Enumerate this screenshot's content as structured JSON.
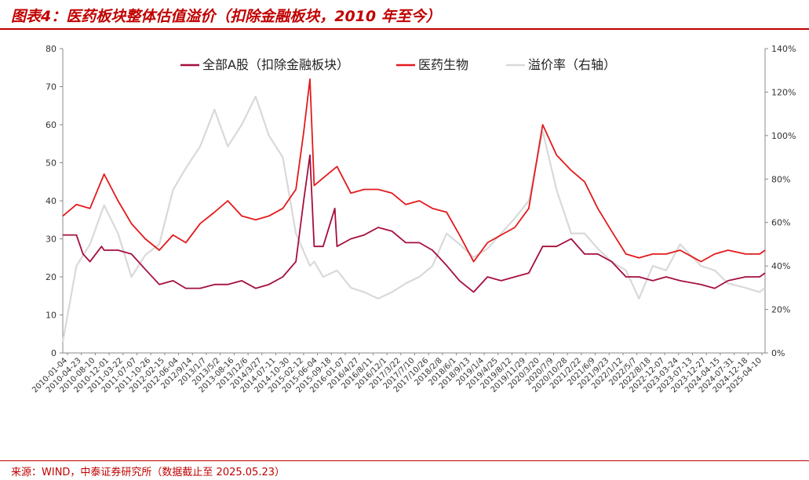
{
  "header": {
    "title": "图表4：医药板块整体估值溢价（扣除金融板块，2010 年至今）"
  },
  "footer": {
    "source": "来源：WIND，中泰证券研究所（数据截止至 2025.05.23）"
  },
  "colors": {
    "brand": "#c00000",
    "series_a": "#a50f3c",
    "series_b": "#e31a1c",
    "series_c": "#d9d9d9"
  },
  "chart_data": {
    "type": "line",
    "title": "",
    "legend_position": "top",
    "grid": false,
    "y_left": {
      "min": 0,
      "max": 80,
      "ticks": [
        "0",
        "10",
        "20",
        "30",
        "40",
        "50",
        "60",
        "70",
        "80"
      ]
    },
    "y_right": {
      "min": 0,
      "max": 140,
      "unit": "%",
      "ticks": [
        "0%",
        "20%",
        "40%",
        "60%",
        "80%",
        "100%",
        "120%",
        "140%"
      ]
    },
    "x_range": [
      "2010-01-04",
      "2025-05-23"
    ],
    "x_tick_labels": [
      "2010-01-04",
      "2010-04-23",
      "2010-08-10",
      "2010-12-01",
      "2011-03-22",
      "2011-07-07",
      "2011-10-26",
      "2012-02-15",
      "2012-06-04",
      "2012/9/14",
      "2013/1/7",
      "2013/5/2",
      "2013-08-16",
      "2013/12/6",
      "2014/3/27",
      "2014-07-11",
      "2014-10-30",
      "2015-02-12",
      "2015-06-04",
      "2015-09-18",
      "2016-01-07",
      "2016/4/27",
      "2016/8/11",
      "2016/12/1",
      "2017/3/22",
      "2017/7/10",
      "2017/10/26",
      "2018/2/8",
      "2018/6/1",
      "2018/9/13",
      "2019/1/4",
      "2019/4/25",
      "2019/8/12",
      "2019/11/29",
      "2020/3/20",
      "2020/7/9",
      "2020/10/28",
      "2021/2/22",
      "2021/6/9",
      "2021/9/23",
      "2022/1/12",
      "2022/5/7",
      "2022/8/18",
      "2022-12-07",
      "2023-03-24",
      "2023-07-13",
      "2023-12-27",
      "2024-04-15",
      "2024-07-31",
      "2024-12-18",
      "2025-04-10"
    ],
    "series": [
      {
        "name": "全部A股（扣除金融板块）",
        "axis": "left",
        "color": "#a50f3c",
        "points": [
          [
            "2010-01-04",
            31
          ],
          [
            "2010-04-23",
            31
          ],
          [
            "2010-06-15",
            26
          ],
          [
            "2010-08-10",
            24
          ],
          [
            "2010-11-10",
            28
          ],
          [
            "2010-12-01",
            27
          ],
          [
            "2011-03-22",
            27
          ],
          [
            "2011-07-07",
            26
          ],
          [
            "2011-10-26",
            22
          ],
          [
            "2012-02-15",
            18
          ],
          [
            "2012-06-04",
            19
          ],
          [
            "2012/9/14",
            17
          ],
          [
            "2013/1/7",
            17
          ],
          [
            "2013/5/2",
            18
          ],
          [
            "2013-08-16",
            18
          ],
          [
            "2013/12/6",
            19
          ],
          [
            "2014/3/27",
            17
          ],
          [
            "2014-07-11",
            18
          ],
          [
            "2014-10-30",
            20
          ],
          [
            "2015-02-12",
            24
          ],
          [
            "2015-04-15",
            40
          ],
          [
            "2015-06-04",
            52
          ],
          [
            "2015-07-08",
            28
          ],
          [
            "2015-09-18",
            28
          ],
          [
            "2015-12-20",
            38
          ],
          [
            "2016-01-07",
            28
          ],
          [
            "2016/4/27",
            30
          ],
          [
            "2016/8/11",
            31
          ],
          [
            "2016/12/1",
            33
          ],
          [
            "2017/3/22",
            32
          ],
          [
            "2017/7/10",
            29
          ],
          [
            "2017/10/26",
            29
          ],
          [
            "2018/2/8",
            27
          ],
          [
            "2018/6/1",
            23
          ],
          [
            "2018/9/13",
            19
          ],
          [
            "2019/1/4",
            16
          ],
          [
            "2019/4/25",
            20
          ],
          [
            "2019/8/12",
            19
          ],
          [
            "2019/11/29",
            20
          ],
          [
            "2020/3/20",
            21
          ],
          [
            "2020/7/9",
            28
          ],
          [
            "2020/10/28",
            28
          ],
          [
            "2021/2/22",
            30
          ],
          [
            "2021/6/9",
            26
          ],
          [
            "2021/9/23",
            26
          ],
          [
            "2022/1/12",
            24
          ],
          [
            "2022/5/7",
            20
          ],
          [
            "2022/8/18",
            20
          ],
          [
            "2022-12-07",
            19
          ],
          [
            "2023-03-24",
            20
          ],
          [
            "2023-07-13",
            19
          ],
          [
            "2023-12-27",
            18
          ],
          [
            "2024-04-15",
            17
          ],
          [
            "2024-07-31",
            19
          ],
          [
            "2024-12-18",
            20
          ],
          [
            "2025-04-10",
            20
          ],
          [
            "2025-05-23",
            21
          ]
        ]
      },
      {
        "name": "医药生物",
        "axis": "left",
        "color": "#e31a1c",
        "points": [
          [
            "2010-01-04",
            36
          ],
          [
            "2010-04-23",
            39
          ],
          [
            "2010-08-10",
            38
          ],
          [
            "2010-12-01",
            47
          ],
          [
            "2011-03-22",
            40
          ],
          [
            "2011-07-07",
            34
          ],
          [
            "2011-10-26",
            30
          ],
          [
            "2012-02-15",
            27
          ],
          [
            "2012-06-04",
            31
          ],
          [
            "2012/9/14",
            29
          ],
          [
            "2013/1/7",
            34
          ],
          [
            "2013/5/2",
            37
          ],
          [
            "2013-08-16",
            40
          ],
          [
            "2013/12/6",
            36
          ],
          [
            "2014/3/27",
            35
          ],
          [
            "2014-07-11",
            36
          ],
          [
            "2014-10-30",
            38
          ],
          [
            "2015-02-12",
            43
          ],
          [
            "2015-04-15",
            58
          ],
          [
            "2015-06-04",
            72
          ],
          [
            "2015-07-08",
            44
          ],
          [
            "2015-09-18",
            46
          ],
          [
            "2016-01-07",
            49
          ],
          [
            "2016/4/27",
            42
          ],
          [
            "2016/8/11",
            43
          ],
          [
            "2016/12/1",
            43
          ],
          [
            "2017/3/22",
            42
          ],
          [
            "2017/7/10",
            39
          ],
          [
            "2017/10/26",
            40
          ],
          [
            "2018/2/8",
            38
          ],
          [
            "2018/6/1",
            37
          ],
          [
            "2018/9/13",
            31
          ],
          [
            "2019/1/4",
            24
          ],
          [
            "2019/4/25",
            29
          ],
          [
            "2019/8/12",
            31
          ],
          [
            "2019/11/29",
            33
          ],
          [
            "2020/3/20",
            38
          ],
          [
            "2020/7/9",
            60
          ],
          [
            "2020/10/28",
            52
          ],
          [
            "2021/2/22",
            48
          ],
          [
            "2021/6/9",
            45
          ],
          [
            "2021/9/23",
            38
          ],
          [
            "2022/1/12",
            32
          ],
          [
            "2022/5/7",
            26
          ],
          [
            "2022/8/18",
            25
          ],
          [
            "2022-12-07",
            26
          ],
          [
            "2023-03-24",
            26
          ],
          [
            "2023-07-13",
            27
          ],
          [
            "2023-12-27",
            24
          ],
          [
            "2024-04-15",
            26
          ],
          [
            "2024-07-31",
            27
          ],
          [
            "2024-12-18",
            26
          ],
          [
            "2025-04-10",
            26
          ],
          [
            "2025-05-23",
            27
          ]
        ]
      },
      {
        "name": "溢价率（右轴）",
        "axis": "right",
        "color": "#d9d9d9",
        "points": [
          [
            "2010-01-04",
            5
          ],
          [
            "2010-04-23",
            40
          ],
          [
            "2010-08-10",
            50
          ],
          [
            "2010-12-01",
            68
          ],
          [
            "2011-03-22",
            55
          ],
          [
            "2011-07-07",
            35
          ],
          [
            "2011-10-26",
            45
          ],
          [
            "2012-02-15",
            50
          ],
          [
            "2012-06-04",
            75
          ],
          [
            "2012/9/14",
            85
          ],
          [
            "2013/1/7",
            95
          ],
          [
            "2013/5/2",
            112
          ],
          [
            "2013-08-16",
            95
          ],
          [
            "2013/12/6",
            105
          ],
          [
            "2014/3/27",
            118
          ],
          [
            "2014-07-11",
            100
          ],
          [
            "2014-10-30",
            90
          ],
          [
            "2015-02-12",
            55
          ],
          [
            "2015-06-04",
            40
          ],
          [
            "2015-07-08",
            42
          ],
          [
            "2015-09-18",
            35
          ],
          [
            "2016-01-07",
            38
          ],
          [
            "2016/4/27",
            30
          ],
          [
            "2016/8/11",
            28
          ],
          [
            "2016/12/1",
            25
          ],
          [
            "2017/3/22",
            28
          ],
          [
            "2017/7/10",
            32
          ],
          [
            "2017/10/26",
            35
          ],
          [
            "2018/2/8",
            40
          ],
          [
            "2018/6/1",
            55
          ],
          [
            "2018/9/13",
            50
          ],
          [
            "2019/1/4",
            44
          ],
          [
            "2019/4/25",
            48
          ],
          [
            "2019/8/12",
            55
          ],
          [
            "2019/11/29",
            62
          ],
          [
            "2020/3/20",
            70
          ],
          [
            "2020/7/9",
            102
          ],
          [
            "2020/10/28",
            75
          ],
          [
            "2021/2/22",
            55
          ],
          [
            "2021/6/9",
            55
          ],
          [
            "2021/9/23",
            48
          ],
          [
            "2022/1/12",
            42
          ],
          [
            "2022/5/7",
            38
          ],
          [
            "2022/8/18",
            25
          ],
          [
            "2022-12-07",
            40
          ],
          [
            "2023-03-24",
            38
          ],
          [
            "2023-07-13",
            50
          ],
          [
            "2023-12-27",
            40
          ],
          [
            "2024-04-15",
            38
          ],
          [
            "2024-07-31",
            32
          ],
          [
            "2024-12-18",
            30
          ],
          [
            "2025-04-10",
            28
          ],
          [
            "2025-05-23",
            30
          ]
        ]
      }
    ]
  }
}
